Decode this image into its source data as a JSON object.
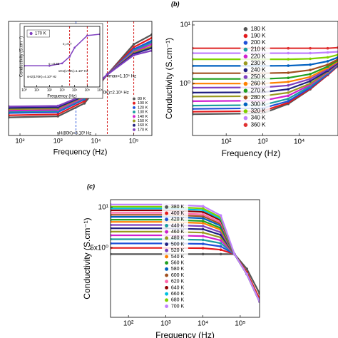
{
  "chart_data": [
    {
      "type": "line",
      "xscale": "log",
      "yscale": "log",
      "xlim": [
        50,
        300000
      ],
      "ylim": [
        0.01,
        10
      ],
      "xlabel": "Frequency (Hz)",
      "xticks": [
        {
          "value": 100,
          "label": "10²"
        },
        {
          "value": 1000,
          "label": "10³"
        },
        {
          "value": 10000,
          "label": "10⁴"
        },
        {
          "value": 100000,
          "label": "10⁵"
        }
      ],
      "yticks": [],
      "legend": "lower right",
      "x": [
        50,
        1000,
        5000,
        20000,
        100000,
        300000
      ],
      "series": [
        {
          "name": "80 K",
          "color": "#555555",
          "values": [
            0.03,
            0.032,
            0.07,
            0.4,
            2.5,
            4.5
          ]
        },
        {
          "name": "100 K",
          "color": "#e41a1c",
          "values": [
            0.034,
            0.036,
            0.08,
            0.4,
            2.1,
            3.7
          ]
        },
        {
          "name": "120 K",
          "color": "#1f4fd8",
          "values": [
            0.039,
            0.041,
            0.09,
            0.4,
            1.85,
            3.1
          ]
        },
        {
          "name": "130 K",
          "color": "#1a9e9e",
          "values": [
            0.042,
            0.044,
            0.095,
            0.4,
            1.7,
            2.8
          ]
        },
        {
          "name": "140 K",
          "color": "#d020d0",
          "values": [
            0.045,
            0.047,
            0.1,
            0.4,
            1.6,
            2.5
          ]
        },
        {
          "name": "150 K",
          "color": "#9a9a20",
          "values": [
            0.049,
            0.051,
            0.105,
            0.4,
            1.5,
            2.2
          ]
        },
        {
          "name": "160 K",
          "color": "#202080",
          "values": [
            0.053,
            0.055,
            0.11,
            0.4,
            1.4,
            2.0
          ]
        },
        {
          "name": "170 K",
          "color": "#8040c0",
          "values": [
            0.058,
            0.06,
            0.115,
            0.4,
            1.3,
            1.7
          ]
        }
      ],
      "vlines": [
        {
          "x": 100000,
          "color": "#d00000"
        },
        {
          "x": 20000,
          "color": "#d00000"
        },
        {
          "x": 3000,
          "color": "#1f4fd8"
        }
      ],
      "annotations": [
        {
          "text": "νmax=1.10⁵ Hz",
          "color": "#1f4fd8"
        },
        {
          "text": "νH(80K)=2.10⁴ Hz",
          "color": "#1f4fd8"
        },
        {
          "text": "νH(80K)=3.10³ Hz",
          "color": "#1f4fd8"
        }
      ]
    },
    {
      "type": "line",
      "xscale": "log",
      "yscale": "log",
      "xlim": [
        1,
        1000000
      ],
      "ylim": [
        0.01,
        1
      ],
      "xlabel": "Frequency (Hz)",
      "ylabel": "Conductivity (S.cm⁻¹)",
      "xticks": [
        {
          "value": 1,
          "label": "10⁰"
        },
        {
          "value": 10,
          "label": "10¹"
        },
        {
          "value": 100,
          "label": "10²"
        },
        {
          "value": 1000,
          "label": "10³"
        },
        {
          "value": 10000,
          "label": "10⁴"
        },
        {
          "value": 100000,
          "label": "10⁵"
        },
        {
          "value": 1000000,
          "label": "10⁶"
        }
      ],
      "yticks": [],
      "legend": "upper left",
      "x": [
        1,
        100,
        1000,
        4000,
        10000,
        100000,
        1000000
      ],
      "series": [
        {
          "name": "170 K",
          "color": "#8040c0",
          "values": [
            0.05,
            0.05,
            0.06,
            0.1,
            0.2,
            0.5,
            0.55
          ]
        }
      ],
      "vlines": [
        {
          "x": 4000,
          "color": "#d00000"
        },
        {
          "x": 100000,
          "color": "#d00000"
        }
      ],
      "annotations": [
        {
          "text": "s₁=0.7",
          "color": "#000000"
        },
        {
          "text": "s₂=0.65",
          "color": "#000000"
        },
        {
          "text": "νH2(170K)=4.10³ Hz",
          "color": "#1f4fd8"
        },
        {
          "text": "νH1(170K)=1.10⁵ Hz",
          "color": "#1f4fd8"
        }
      ]
    },
    {
      "type": "line",
      "title": "(b)",
      "xscale": "log",
      "yscale": "log",
      "xlim": [
        12,
        115000
      ],
      "ylim": [
        0.13,
        11.5
      ],
      "xlabel": "Frequency (Hz)",
      "ylabel": "Conductivity (S.cm⁻¹)",
      "xticks": [
        {
          "value": 100,
          "label": "10²"
        },
        {
          "value": 1000,
          "label": "10³"
        },
        {
          "value": 10000,
          "label": "10⁴"
        }
      ],
      "yticks": [
        {
          "value": 1,
          "label": "10⁰"
        },
        {
          "value": 10,
          "label": "10¹"
        }
      ],
      "legend": "upper center",
      "x": [
        12,
        1000,
        5000,
        20000,
        60000,
        115000
      ],
      "series": [
        {
          "name": "180 K",
          "color": "#555555",
          "values": [
            0.3,
            0.31,
            0.45,
            0.8,
            1.4,
            2.0
          ]
        },
        {
          "name": "190 K",
          "color": "#e41a1c",
          "values": [
            0.33,
            0.34,
            0.47,
            0.82,
            1.4,
            2.0
          ]
        },
        {
          "name": "200 K",
          "color": "#1f4fd8",
          "values": [
            0.37,
            0.38,
            0.5,
            0.85,
            1.45,
            2.05
          ]
        },
        {
          "name": "210 K",
          "color": "#1a9e9e",
          "values": [
            0.42,
            0.43,
            0.55,
            0.9,
            1.5,
            2.1
          ]
        },
        {
          "name": "220 K",
          "color": "#d020d0",
          "values": [
            0.5,
            0.51,
            0.62,
            0.95,
            1.55,
            2.15
          ]
        },
        {
          "name": "230 K",
          "color": "#9a9a20",
          "values": [
            0.6,
            0.61,
            0.7,
            1.0,
            1.6,
            2.2
          ]
        },
        {
          "name": "240 K",
          "color": "#202080",
          "values": [
            0.7,
            0.71,
            0.8,
            1.1,
            1.65,
            2.25
          ]
        },
        {
          "name": "250 K",
          "color": "#8040c0",
          "values": [
            0.85,
            0.86,
            0.93,
            1.2,
            1.75,
            2.3
          ]
        },
        {
          "name": "260 K",
          "color": "#ff8000",
          "values": [
            1.0,
            1.0,
            1.07,
            1.3,
            1.85,
            2.4
          ]
        },
        {
          "name": "270 K",
          "color": "#20a020",
          "values": [
            1.2,
            1.2,
            1.25,
            1.45,
            1.95,
            2.5
          ]
        },
        {
          "name": "280 K",
          "color": "#a05020",
          "values": [
            1.5,
            1.5,
            1.53,
            1.7,
            2.1,
            2.6
          ]
        },
        {
          "name": "300 K",
          "color": "#0060c0",
          "values": [
            2.0,
            2.0,
            2.02,
            2.1,
            2.4,
            2.8
          ]
        },
        {
          "name": "320 K",
          "color": "#80d000",
          "values": [
            2.6,
            2.6,
            2.6,
            2.65,
            2.8,
            3.1
          ]
        },
        {
          "name": "340 K",
          "color": "#c080ff",
          "values": [
            3.3,
            3.3,
            3.3,
            3.3,
            3.4,
            3.5
          ]
        },
        {
          "name": "360 K",
          "color": "#e03030",
          "values": [
            4.0,
            4.0,
            4.0,
            4.0,
            4.0,
            4.1
          ]
        }
      ]
    },
    {
      "type": "line",
      "title": "(c)",
      "xscale": "log",
      "yscale": "log",
      "xlim": [
        33,
        330000
      ],
      "ylim": [
        1.53,
        11.4
      ],
      "xlabel": "Frequency (Hz)",
      "ylabel": "Conductivity (S.cm⁻¹)",
      "xticks": [
        {
          "value": 100,
          "label": "10²"
        },
        {
          "value": 1000,
          "label": "10³"
        },
        {
          "value": 10000,
          "label": "10⁴"
        },
        {
          "value": 100000,
          "label": "10⁵"
        }
      ],
      "yticks": [
        {
          "value": 5,
          "label": "5x10⁰"
        },
        {
          "value": 10,
          "label": "10¹"
        }
      ],
      "legend": "upper center",
      "x": [
        33,
        1000,
        10000,
        30000,
        70000,
        150000,
        330000
      ],
      "series": [
        {
          "name": "380 K",
          "color": "#555555",
          "values": [
            4.5,
            4.5,
            4.5,
            4.5,
            4.5,
            3.5,
            2.3
          ]
        },
        {
          "name": "400 K",
          "color": "#e41a1c",
          "values": [
            5.0,
            5.0,
            4.98,
            4.85,
            4.5,
            3.3,
            2.1
          ]
        },
        {
          "name": "420 K",
          "color": "#1f4fd8",
          "values": [
            5.4,
            5.4,
            5.36,
            5.13,
            4.5,
            3.2,
            2.0
          ]
        },
        {
          "name": "440 K",
          "color": "#1a9e9e",
          "values": [
            5.8,
            5.8,
            5.74,
            5.41,
            4.5,
            3.2,
            2.0
          ]
        },
        {
          "name": "460 K",
          "color": "#d020d0",
          "values": [
            6.2,
            6.2,
            6.12,
            5.69,
            4.5,
            3.2,
            2.0
          ]
        },
        {
          "name": "480 K",
          "color": "#9a9a20",
          "values": [
            6.6,
            6.6,
            6.5,
            5.97,
            4.5,
            3.2,
            2.0
          ]
        },
        {
          "name": "500 K",
          "color": "#202080",
          "values": [
            7.0,
            7.0,
            6.88,
            6.25,
            4.5,
            3.2,
            2.0
          ]
        },
        {
          "name": "520 K",
          "color": "#8040c0",
          "values": [
            7.4,
            7.4,
            7.26,
            6.53,
            4.5,
            3.2,
            2.0
          ]
        },
        {
          "name": "540 K",
          "color": "#ff8000",
          "values": [
            7.8,
            7.8,
            7.64,
            6.81,
            4.5,
            3.2,
            2.0
          ]
        },
        {
          "name": "560 K",
          "color": "#20a020",
          "values": [
            8.1,
            8.1,
            7.92,
            7.02,
            4.5,
            3.2,
            2.0
          ]
        },
        {
          "name": "580 K",
          "color": "#0060c0",
          "values": [
            8.5,
            8.5,
            8.3,
            7.3,
            4.5,
            3.2,
            2.0
          ]
        },
        {
          "name": "600 K",
          "color": "#a05020",
          "values": [
            8.8,
            8.8,
            8.59,
            7.51,
            4.5,
            3.2,
            2.0
          ]
        },
        {
          "name": "620 K",
          "color": "#ff66aa",
          "values": [
            9.1,
            9.1,
            8.87,
            7.72,
            4.5,
            3.2,
            2.0
          ]
        },
        {
          "name": "640 K",
          "color": "#900000",
          "values": [
            9.5,
            9.5,
            9.25,
            8.0,
            4.5,
            3.2,
            2.0
          ]
        },
        {
          "name": "660 K",
          "color": "#00c0e0",
          "values": [
            9.8,
            9.8,
            9.54,
            8.21,
            4.5,
            3.2,
            2.0
          ]
        },
        {
          "name": "680 K",
          "color": "#80d000",
          "values": [
            10.1,
            10.1,
            9.82,
            8.42,
            4.5,
            3.2,
            2.0
          ]
        },
        {
          "name": "700 K",
          "color": "#c080ff",
          "values": [
            10.5,
            10.5,
            10.2,
            8.7,
            4.5,
            3.2,
            2.0
          ]
        }
      ]
    }
  ]
}
